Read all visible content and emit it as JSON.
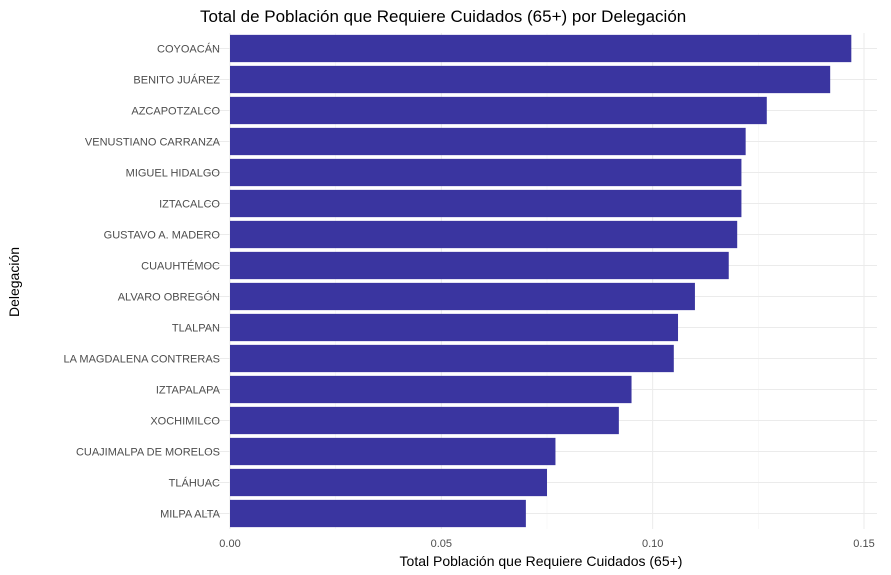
{
  "chart_data": {
    "type": "bar",
    "orientation": "horizontal",
    "title": "Total de Población que Requiere Cuidados (65+) por Delegación",
    "xlabel": "Total Población que Requiere Cuidados (65+)",
    "ylabel": "Delegación",
    "xlim": [
      0,
      0.15
    ],
    "x_ticks": [
      0.0,
      0.05,
      0.1,
      0.15
    ],
    "x_tick_labels": [
      "0.00",
      "0.05",
      "0.10",
      "0.15"
    ],
    "grid": true,
    "bar_color": "#3a35a0",
    "categories": [
      "COYOACÁN",
      "BENITO JUÁREZ",
      "AZCAPOTZALCO",
      "VENUSTIANO CARRANZA",
      "MIGUEL HIDALGO",
      "IZTACALCO",
      "GUSTAVO A. MADERO",
      "CUAUHTÉMOC",
      "ALVARO OBREGÓN",
      "TLALPAN",
      "LA MAGDALENA CONTRERAS",
      "IZTAPALAPA",
      "XOCHIMILCO",
      "CUAJIMALPA DE MORELOS",
      "TLÁHUAC",
      "MILPA ALTA"
    ],
    "values": [
      0.147,
      0.142,
      0.127,
      0.122,
      0.121,
      0.121,
      0.12,
      0.118,
      0.11,
      0.106,
      0.105,
      0.095,
      0.092,
      0.077,
      0.075,
      0.07
    ]
  }
}
